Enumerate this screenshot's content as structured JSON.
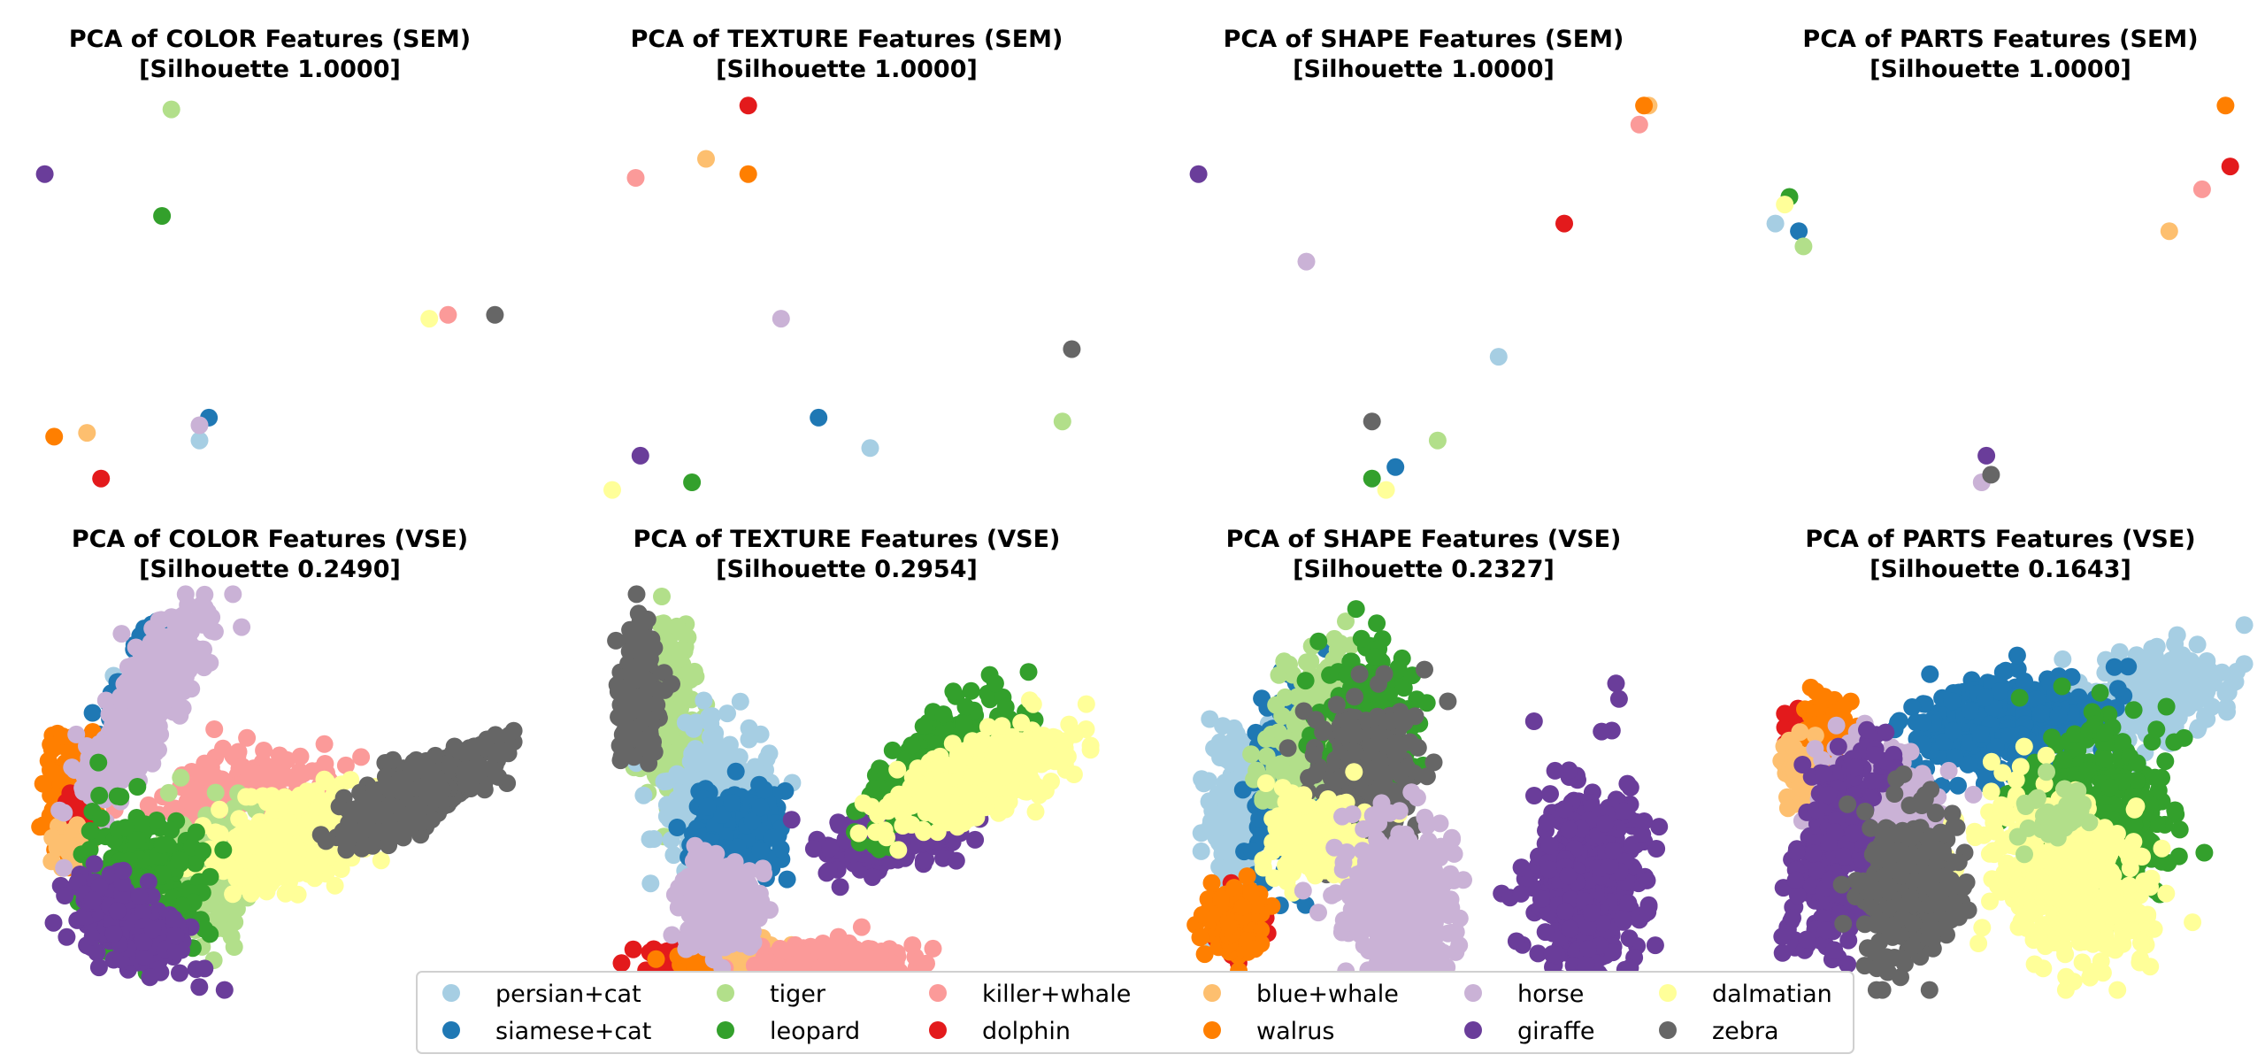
{
  "legend": {
    "placement": "bottom-center",
    "columns": 6,
    "entries": [
      {
        "name": "persian+cat",
        "color": "#a6cee3"
      },
      {
        "name": "siamese+cat",
        "color": "#1f78b4"
      },
      {
        "name": "tiger",
        "color": "#b2df8a"
      },
      {
        "name": "leopard",
        "color": "#33a02c"
      },
      {
        "name": "killer+whale",
        "color": "#fb9a99"
      },
      {
        "name": "dolphin",
        "color": "#e31a1c"
      },
      {
        "name": "blue+whale",
        "color": "#fdbf6f"
      },
      {
        "name": "walrus",
        "color": "#ff7f00"
      },
      {
        "name": "horse",
        "color": "#cab2d6"
      },
      {
        "name": "giraffe",
        "color": "#6a3d9a"
      },
      {
        "name": "dalmatian",
        "color": "#ffff99"
      },
      {
        "name": "zebra",
        "color": "#666666"
      }
    ]
  },
  "chart_data": [
    {
      "type": "scatter",
      "feature": "COLOR",
      "space": "SEM",
      "title": "PCA of COLOR Features (SEM)",
      "subtitle": "[Silhouette 1.0000]",
      "axes_visible": false,
      "grid": false,
      "xlim": [
        0,
        1
      ],
      "ylim": [
        0,
        1
      ],
      "points": [
        {
          "class": "persian+cat",
          "x": 0.35,
          "y": 0.11
        },
        {
          "class": "siamese+cat",
          "x": 0.37,
          "y": 0.17
        },
        {
          "class": "tiger",
          "x": 0.29,
          "y": 0.98
        },
        {
          "class": "leopard",
          "x": 0.27,
          "y": 0.7
        },
        {
          "class": "killer+whale",
          "x": 0.88,
          "y": 0.44
        },
        {
          "class": "dolphin",
          "x": 0.14,
          "y": 0.01
        },
        {
          "class": "blue+whale",
          "x": 0.11,
          "y": 0.13
        },
        {
          "class": "walrus",
          "x": 0.04,
          "y": 0.12
        },
        {
          "class": "horse",
          "x": 0.35,
          "y": 0.15
        },
        {
          "class": "giraffe",
          "x": 0.02,
          "y": 0.81
        },
        {
          "class": "dalmatian",
          "x": 0.84,
          "y": 0.43
        },
        {
          "class": "zebra",
          "x": 0.98,
          "y": 0.44
        }
      ]
    },
    {
      "type": "scatter",
      "feature": "TEXTURE",
      "space": "SEM",
      "title": "PCA of TEXTURE Features (SEM)",
      "subtitle": "[Silhouette 1.0000]",
      "axes_visible": false,
      "grid": false,
      "xlim": [
        0,
        1
      ],
      "ylim": [
        0,
        1
      ],
      "points": [
        {
          "class": "persian+cat",
          "x": 0.55,
          "y": 0.09
        },
        {
          "class": "siamese+cat",
          "x": 0.44,
          "y": 0.17
        },
        {
          "class": "tiger",
          "x": 0.96,
          "y": 0.16
        },
        {
          "class": "leopard",
          "x": 0.17,
          "y": 0.0
        },
        {
          "class": "killer+whale",
          "x": 0.05,
          "y": 0.8
        },
        {
          "class": "dolphin",
          "x": 0.29,
          "y": 0.99
        },
        {
          "class": "blue+whale",
          "x": 0.2,
          "y": 0.85
        },
        {
          "class": "walrus",
          "x": 0.29,
          "y": 0.81
        },
        {
          "class": "horse",
          "x": 0.36,
          "y": 0.43
        },
        {
          "class": "giraffe",
          "x": 0.06,
          "y": 0.07
        },
        {
          "class": "dalmatian",
          "x": 0.0,
          "y": -0.02
        },
        {
          "class": "zebra",
          "x": 0.98,
          "y": 0.35
        }
      ]
    },
    {
      "type": "scatter",
      "feature": "SHAPE",
      "space": "SEM",
      "title": "PCA of SHAPE Features (SEM)",
      "subtitle": "[Silhouette 1.0000]",
      "axes_visible": false,
      "grid": false,
      "xlim": [
        0,
        1
      ],
      "ylim": [
        0,
        1
      ],
      "points": [
        {
          "class": "persian+cat",
          "x": 0.66,
          "y": 0.33
        },
        {
          "class": "siamese+cat",
          "x": 0.44,
          "y": 0.04
        },
        {
          "class": "tiger",
          "x": 0.53,
          "y": 0.11
        },
        {
          "class": "leopard",
          "x": 0.39,
          "y": 0.01
        },
        {
          "class": "killer+whale",
          "x": 0.96,
          "y": 0.94
        },
        {
          "class": "dolphin",
          "x": 0.8,
          "y": 0.68
        },
        {
          "class": "blue+whale",
          "x": 0.98,
          "y": 0.99
        },
        {
          "class": "walrus",
          "x": 0.97,
          "y": 0.99
        },
        {
          "class": "horse",
          "x": 0.25,
          "y": 0.58
        },
        {
          "class": "giraffe",
          "x": 0.02,
          "y": 0.81
        },
        {
          "class": "dalmatian",
          "x": 0.42,
          "y": -0.02
        },
        {
          "class": "zebra",
          "x": 0.39,
          "y": 0.16
        }
      ]
    },
    {
      "type": "scatter",
      "feature": "PARTS",
      "space": "SEM",
      "title": "PCA of PARTS Features (SEM)",
      "subtitle": "[Silhouette 1.0000]",
      "axes_visible": false,
      "grid": false,
      "xlim": [
        0,
        1
      ],
      "ylim": [
        0,
        1
      ],
      "points": [
        {
          "class": "persian+cat",
          "x": 0.02,
          "y": 0.68
        },
        {
          "class": "siamese+cat",
          "x": 0.07,
          "y": 0.66
        },
        {
          "class": "tiger",
          "x": 0.08,
          "y": 0.62
        },
        {
          "class": "leopard",
          "x": 0.05,
          "y": 0.75
        },
        {
          "class": "killer+whale",
          "x": 0.93,
          "y": 0.77
        },
        {
          "class": "dolphin",
          "x": 0.99,
          "y": 0.83
        },
        {
          "class": "blue+whale",
          "x": 0.86,
          "y": 0.66
        },
        {
          "class": "walrus",
          "x": 0.98,
          "y": 0.99
        },
        {
          "class": "horse",
          "x": 0.46,
          "y": 0.0
        },
        {
          "class": "giraffe",
          "x": 0.47,
          "y": 0.07
        },
        {
          "class": "dalmatian",
          "x": 0.04,
          "y": 0.73
        },
        {
          "class": "zebra",
          "x": 0.48,
          "y": 0.02
        }
      ]
    },
    {
      "type": "scatter",
      "feature": "COLOR",
      "space": "VSE",
      "title": "PCA of COLOR Features (VSE)",
      "subtitle": "[Silhouette 0.2490]",
      "axes_visible": false,
      "grid": false,
      "xlim": [
        0,
        1
      ],
      "ylim": [
        0,
        1
      ],
      "clusters": [
        {
          "class": "persian+cat",
          "cx": 0.2,
          "cy": 0.7,
          "sx": 0.03,
          "sy": 0.06,
          "rho": 0.3,
          "n": 30
        },
        {
          "class": "siamese+cat",
          "cx": 0.21,
          "cy": 0.78,
          "sx": 0.04,
          "sy": 0.09,
          "rho": 0.8,
          "n": 100
        },
        {
          "class": "killer+whale",
          "cx": 0.43,
          "cy": 0.5,
          "sx": 0.09,
          "sy": 0.05,
          "rho": 0.3,
          "n": 220
        },
        {
          "class": "tiger",
          "cx": 0.37,
          "cy": 0.27,
          "sx": 0.05,
          "sy": 0.09,
          "rho": 0.0,
          "n": 200
        },
        {
          "class": "dalmatian",
          "cx": 0.55,
          "cy": 0.37,
          "sx": 0.08,
          "sy": 0.06,
          "rho": 0.4,
          "n": 420
        },
        {
          "class": "zebra",
          "cx": 0.82,
          "cy": 0.5,
          "sx": 0.08,
          "sy": 0.06,
          "rho": 0.75,
          "n": 420
        },
        {
          "class": "walrus",
          "cx": 0.07,
          "cy": 0.5,
          "sx": 0.025,
          "sy": 0.08,
          "rho": 0.0,
          "n": 120
        },
        {
          "class": "dolphin",
          "cx": 0.1,
          "cy": 0.44,
          "sx": 0.012,
          "sy": 0.03,
          "rho": 0.0,
          "n": 30
        },
        {
          "class": "blue+whale",
          "cx": 0.08,
          "cy": 0.35,
          "sx": 0.02,
          "sy": 0.03,
          "rho": 0.0,
          "n": 40
        },
        {
          "class": "horse",
          "cx": 0.24,
          "cy": 0.74,
          "sx": 0.065,
          "sy": 0.12,
          "rho": 0.8,
          "n": 420
        },
        {
          "class": "leopard",
          "cx": 0.23,
          "cy": 0.28,
          "sx": 0.06,
          "sy": 0.08,
          "rho": 0.0,
          "n": 300
        },
        {
          "class": "giraffe",
          "cx": 0.2,
          "cy": 0.15,
          "sx": 0.06,
          "sy": 0.06,
          "rho": -0.5,
          "n": 260
        }
      ]
    },
    {
      "type": "scatter",
      "feature": "TEXTURE",
      "space": "VSE",
      "title": "PCA of TEXTURE Features (VSE)",
      "subtitle": "[Silhouette 0.2954]",
      "axes_visible": false,
      "grid": false,
      "xlim": [
        0,
        1
      ],
      "ylim": [
        0,
        1
      ],
      "clusters": [
        {
          "class": "tiger",
          "cx": 0.12,
          "cy": 0.7,
          "sx": 0.03,
          "sy": 0.11,
          "rho": 0.0,
          "n": 200
        },
        {
          "class": "persian+cat",
          "cx": 0.22,
          "cy": 0.5,
          "sx": 0.06,
          "sy": 0.09,
          "rho": 0.0,
          "n": 220
        },
        {
          "class": "siamese+cat",
          "cx": 0.27,
          "cy": 0.4,
          "sx": 0.05,
          "sy": 0.05,
          "rho": 0.0,
          "n": 260
        },
        {
          "class": "zebra",
          "cx": 0.06,
          "cy": 0.75,
          "sx": 0.02,
          "sy": 0.08,
          "rho": 0.0,
          "n": 260
        },
        {
          "class": "dolphin",
          "cx": 0.16,
          "cy": 0.06,
          "sx": 0.05,
          "sy": 0.02,
          "rho": 0.0,
          "n": 120
        },
        {
          "class": "walrus",
          "cx": 0.22,
          "cy": 0.06,
          "sx": 0.04,
          "sy": 0.025,
          "rho": 0.0,
          "n": 100
        },
        {
          "class": "blue+whale",
          "cx": 0.31,
          "cy": 0.07,
          "sx": 0.03,
          "sy": 0.03,
          "rho": 0.0,
          "n": 60
        },
        {
          "class": "killer+whale",
          "cx": 0.48,
          "cy": 0.05,
          "sx": 0.08,
          "sy": 0.025,
          "rho": 0.0,
          "n": 220
        },
        {
          "class": "horse",
          "cx": 0.23,
          "cy": 0.2,
          "sx": 0.04,
          "sy": 0.06,
          "rho": 0.0,
          "n": 280
        },
        {
          "class": "giraffe",
          "cx": 0.6,
          "cy": 0.38,
          "sx": 0.07,
          "sy": 0.04,
          "rho": 0.3,
          "n": 220
        },
        {
          "class": "leopard",
          "cx": 0.7,
          "cy": 0.58,
          "sx": 0.08,
          "sy": 0.08,
          "rho": 0.6,
          "n": 280
        },
        {
          "class": "dalmatian",
          "cx": 0.78,
          "cy": 0.54,
          "sx": 0.09,
          "sy": 0.06,
          "rho": 0.6,
          "n": 420
        }
      ]
    },
    {
      "type": "scatter",
      "feature": "SHAPE",
      "space": "VSE",
      "title": "PCA of SHAPE Features (VSE)",
      "subtitle": "[Silhouette 0.2327]",
      "axes_visible": false,
      "grid": false,
      "xlim": [
        0,
        1
      ],
      "ylim": [
        0,
        1
      ],
      "clusters": [
        {
          "class": "persian+cat",
          "cx": 0.1,
          "cy": 0.45,
          "sx": 0.03,
          "sy": 0.1,
          "rho": 0.0,
          "n": 220
        },
        {
          "class": "siamese+cat",
          "cx": 0.22,
          "cy": 0.55,
          "sx": 0.04,
          "sy": 0.12,
          "rho": 0.2,
          "n": 260
        },
        {
          "class": "tiger",
          "cx": 0.27,
          "cy": 0.65,
          "sx": 0.05,
          "sy": 0.11,
          "rho": 0.3,
          "n": 260
        },
        {
          "class": "leopard",
          "cx": 0.38,
          "cy": 0.65,
          "sx": 0.05,
          "sy": 0.11,
          "rho": 0.0,
          "n": 260
        },
        {
          "class": "zebra",
          "cx": 0.38,
          "cy": 0.55,
          "sx": 0.05,
          "sy": 0.1,
          "rho": 0.0,
          "n": 300
        },
        {
          "class": "dalmatian",
          "cx": 0.28,
          "cy": 0.38,
          "sx": 0.05,
          "sy": 0.06,
          "rho": 0.0,
          "n": 200
        },
        {
          "class": "horse",
          "cx": 0.45,
          "cy": 0.22,
          "sx": 0.06,
          "sy": 0.1,
          "rho": 0.0,
          "n": 420
        },
        {
          "class": "giraffe",
          "cx": 0.85,
          "cy": 0.25,
          "sx": 0.055,
          "sy": 0.14,
          "rho": 0.0,
          "n": 460
        },
        {
          "class": "dolphin",
          "cx": 0.1,
          "cy": 0.15,
          "sx": 0.025,
          "sy": 0.035,
          "rho": 0.0,
          "n": 60
        },
        {
          "class": "walrus",
          "cx": 0.1,
          "cy": 0.16,
          "sx": 0.03,
          "sy": 0.04,
          "rho": 0.0,
          "n": 220
        }
      ]
    },
    {
      "type": "scatter",
      "feature": "PARTS",
      "space": "VSE",
      "title": "PCA of PARTS Features (VSE)",
      "subtitle": "[Silhouette 0.1643]",
      "axes_visible": false,
      "grid": false,
      "xlim": [
        0,
        1
      ],
      "ylim": [
        0,
        1
      ],
      "clusters": [
        {
          "class": "persian+cat",
          "cx": 0.82,
          "cy": 0.75,
          "sx": 0.08,
          "sy": 0.06,
          "rho": 0.3,
          "n": 300
        },
        {
          "class": "siamese+cat",
          "cx": 0.52,
          "cy": 0.68,
          "sx": 0.1,
          "sy": 0.06,
          "rho": 0.3,
          "n": 420
        },
        {
          "class": "dolphin",
          "cx": 0.08,
          "cy": 0.66,
          "sx": 0.02,
          "sy": 0.03,
          "rho": 0.0,
          "n": 40
        },
        {
          "class": "walrus",
          "cx": 0.13,
          "cy": 0.66,
          "sx": 0.03,
          "sy": 0.05,
          "rho": 0.0,
          "n": 100
        },
        {
          "class": "blue+whale",
          "cx": 0.07,
          "cy": 0.57,
          "sx": 0.02,
          "sy": 0.04,
          "rho": 0.0,
          "n": 60
        },
        {
          "class": "horse",
          "cx": 0.24,
          "cy": 0.45,
          "sx": 0.06,
          "sy": 0.1,
          "rho": 0.0,
          "n": 260
        },
        {
          "class": "giraffe",
          "cx": 0.15,
          "cy": 0.35,
          "sx": 0.05,
          "sy": 0.14,
          "rho": 0.5,
          "n": 300
        },
        {
          "class": "leopard",
          "cx": 0.7,
          "cy": 0.45,
          "sx": 0.08,
          "sy": 0.11,
          "rho": 0.0,
          "n": 400
        },
        {
          "class": "dalmatian",
          "cx": 0.65,
          "cy": 0.27,
          "sx": 0.09,
          "sy": 0.11,
          "rho": -0.3,
          "n": 480
        },
        {
          "class": "zebra",
          "cx": 0.31,
          "cy": 0.25,
          "sx": 0.05,
          "sy": 0.1,
          "rho": 0.0,
          "n": 300
        },
        {
          "class": "tiger",
          "cx": 0.62,
          "cy": 0.44,
          "sx": 0.04,
          "sy": 0.04,
          "rho": 0.0,
          "n": 40
        }
      ]
    }
  ]
}
